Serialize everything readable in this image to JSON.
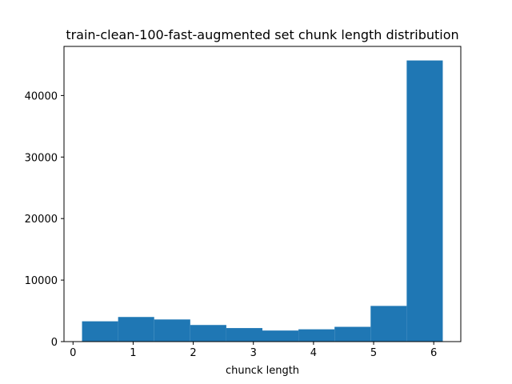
{
  "chart_data": {
    "type": "bar",
    "title": "train-clean-100-fast-augmented set chunk length distribution",
    "xlabel": "chunck length",
    "ylabel": "",
    "bar_color": "#1f77b4",
    "bins": [
      [
        0.15,
        0.75
      ],
      [
        0.75,
        1.35
      ],
      [
        1.35,
        1.95
      ],
      [
        1.95,
        2.55
      ],
      [
        2.55,
        3.15
      ],
      [
        3.15,
        3.75
      ],
      [
        3.75,
        4.35
      ],
      [
        4.35,
        4.95
      ],
      [
        4.95,
        5.55
      ],
      [
        5.55,
        6.15
      ]
    ],
    "values": [
      3300,
      4000,
      3600,
      2700,
      2200,
      1800,
      2000,
      2400,
      5800,
      45700
    ],
    "xlim": [
      -0.15,
      6.45
    ],
    "ylim": [
      0,
      47985
    ],
    "xticks": [
      0,
      1,
      2,
      3,
      4,
      5,
      6
    ],
    "xtick_labels": [
      "0",
      "1",
      "2",
      "3",
      "4",
      "5",
      "6"
    ],
    "yticks": [
      0,
      10000,
      20000,
      30000,
      40000
    ],
    "ytick_labels": [
      "0",
      "10000",
      "20000",
      "30000",
      "40000"
    ],
    "grid": false,
    "legend": false
  }
}
